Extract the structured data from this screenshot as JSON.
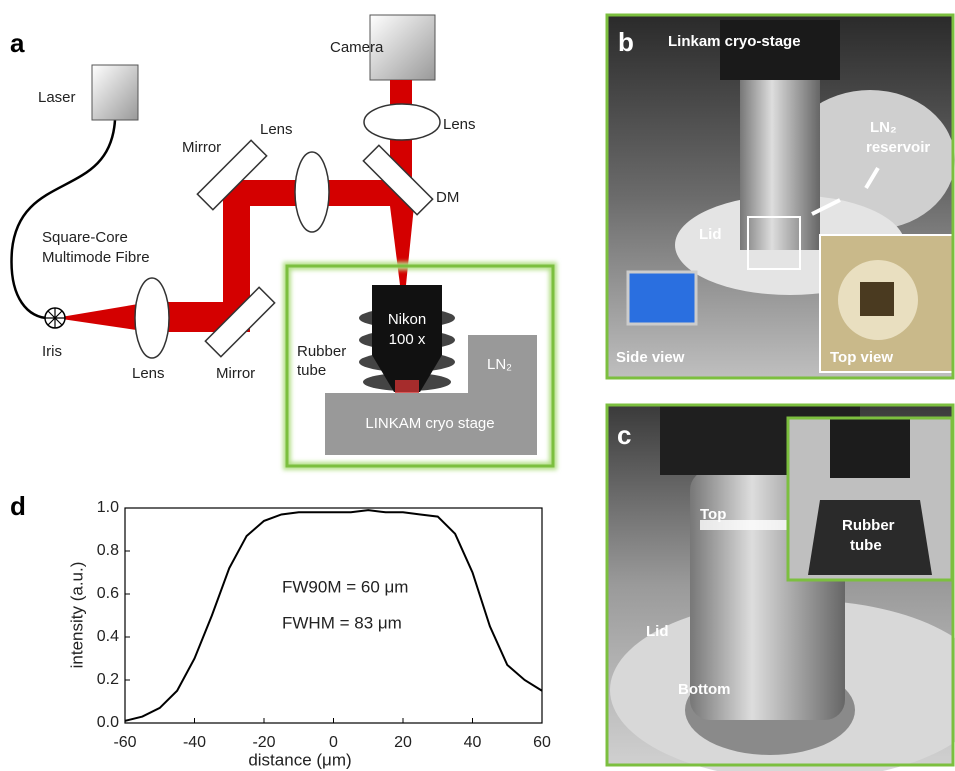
{
  "panels": {
    "a": {
      "label": "a",
      "laser": "Laser",
      "camera": "Camera",
      "lens_camera": "Lens",
      "lens_top": "Lens",
      "lens_left": "Lens",
      "mirror_top": "Mirror",
      "mirror_bottom": "Mirror",
      "dm": "DM",
      "fibre": [
        "Square-Core",
        "Multimode Fibre"
      ],
      "iris": "Iris",
      "rubber_tube": [
        "Rubber",
        "tube"
      ],
      "objective": [
        "Nikon",
        "100 x"
      ],
      "ln2": "LN₂",
      "stage": "LINKAM cryo stage"
    },
    "b": {
      "label": "b",
      "title": "Linkam cryo-stage",
      "reservoir": [
        "LN₂",
        "reservoir"
      ],
      "lid": "Lid",
      "side_view": "Side view",
      "top_view": "Top view"
    },
    "c": {
      "label": "c",
      "top": "Top",
      "rubber_tube": [
        "Rubber",
        "tube"
      ],
      "lid": "Lid",
      "bottom": "Bottom"
    }
  },
  "chart_data": {
    "type": "line",
    "panel_label": "d",
    "xlabel": "distance (μm)",
    "ylabel": "intensity (a.u.)",
    "annotations": [
      "FW90M = 60 μm",
      "FWHM = 83 μm"
    ],
    "x": [
      -60,
      -55,
      -50,
      -45,
      -40,
      -35,
      -30,
      -25,
      -20,
      -15,
      -10,
      -5,
      0,
      5,
      10,
      15,
      20,
      25,
      30,
      35,
      40,
      45,
      50,
      55,
      60
    ],
    "values": [
      0.01,
      0.03,
      0.07,
      0.15,
      0.3,
      0.5,
      0.72,
      0.87,
      0.94,
      0.97,
      0.98,
      0.98,
      0.98,
      0.98,
      0.99,
      0.98,
      0.98,
      0.97,
      0.96,
      0.88,
      0.7,
      0.45,
      0.27,
      0.2,
      0.15
    ],
    "color": "#000000",
    "xlim": [
      -60,
      60
    ],
    "xticks": [
      -60,
      -40,
      -20,
      0,
      20,
      40,
      60
    ],
    "ylim": [
      0,
      1
    ],
    "yticks": [
      {
        "value": 0,
        "label": "0.0"
      },
      0.2,
      0.4,
      0.6,
      0.8,
      {
        "value": 1,
        "label": "1.0"
      }
    ]
  }
}
